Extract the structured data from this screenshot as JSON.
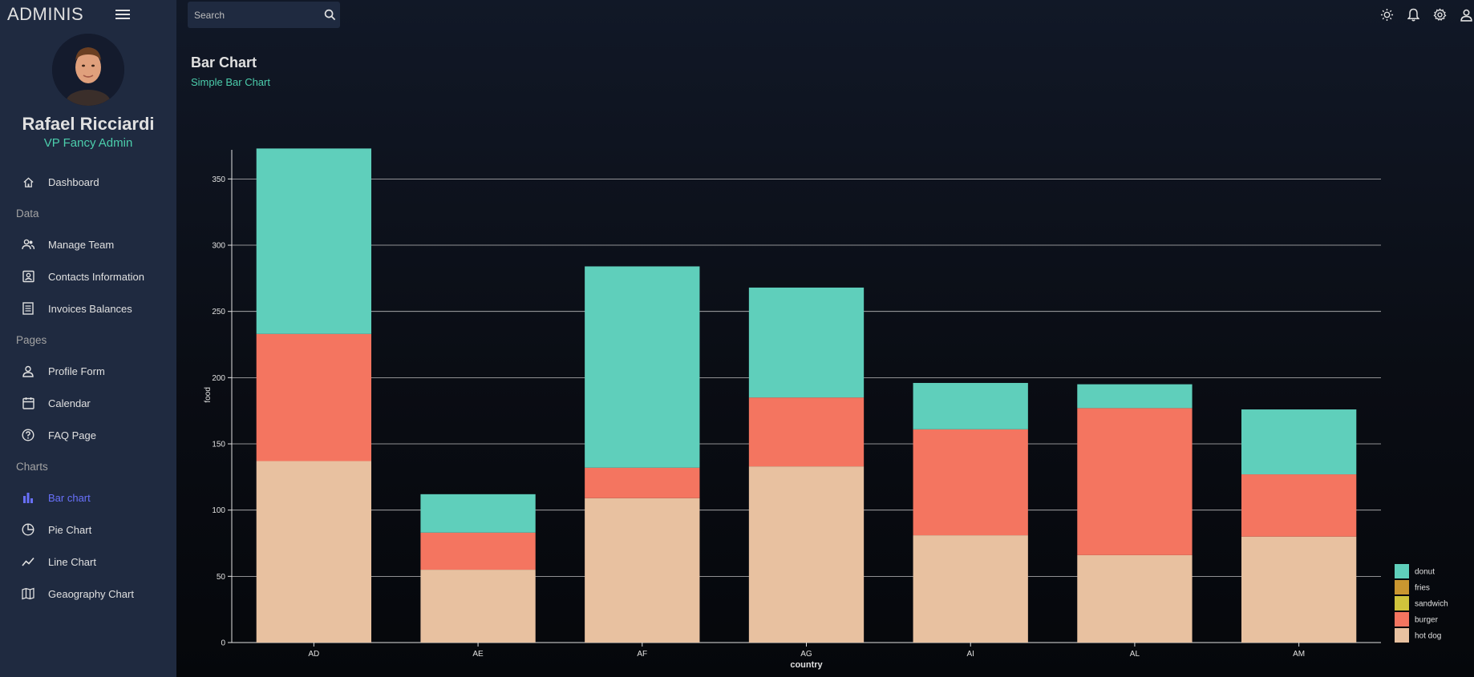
{
  "app": {
    "brand": "ADMINIS"
  },
  "search": {
    "placeholder": "Search"
  },
  "user": {
    "name": "Rafael Ricciardi",
    "role": "VP Fancy Admin"
  },
  "sidebar": {
    "dashboard": "Dashboard",
    "sections": {
      "data": "Data",
      "pages": "Pages",
      "charts": "Charts"
    },
    "items": {
      "manage_team": "Manage Team",
      "contacts": "Contacts Information",
      "invoices": "Invoices Balances",
      "profile": "Profile Form",
      "calendar": "Calendar",
      "faq": "FAQ Page",
      "bar": "Bar chart",
      "pie": "Pie Chart",
      "line": "Line Chart",
      "geo": "Geaography Chart"
    }
  },
  "page": {
    "title": "Bar Chart",
    "subtitle": "Simple Bar Chart"
  },
  "colors": {
    "donut": "#5fcfbb",
    "fries": "#c99630",
    "sandwich": "#cfc33c",
    "burger": "#f47560",
    "hot dog": "#e8c1a0",
    "accent": "#4cceac",
    "active": "#6870fa"
  },
  "chart_data": {
    "type": "bar",
    "stacked": true,
    "xlabel": "country",
    "ylabel": "food",
    "categories": [
      "AD",
      "AE",
      "AF",
      "AG",
      "AI",
      "AL",
      "AM"
    ],
    "ylim": [
      0,
      372
    ],
    "yticks": [
      0,
      50,
      100,
      150,
      200,
      250,
      300,
      350
    ],
    "grid": true,
    "legend_position": "bottom-right",
    "legend": [
      "donut",
      "fries",
      "sandwich",
      "burger",
      "hot dog"
    ],
    "series": [
      {
        "name": "hot dog",
        "values": [
          137,
          55,
          109,
          133,
          81,
          66,
          80
        ]
      },
      {
        "name": "burger",
        "values": [
          96,
          28,
          23,
          52,
          80,
          111,
          47
        ]
      },
      {
        "name": "sandwich",
        "values": [
          0,
          0,
          0,
          0,
          0,
          0,
          0
        ]
      },
      {
        "name": "fries",
        "values": [
          0,
          0,
          0,
          0,
          0,
          0,
          0
        ]
      },
      {
        "name": "donut",
        "values": [
          140,
          29,
          152,
          83,
          35,
          18,
          49
        ]
      }
    ]
  }
}
